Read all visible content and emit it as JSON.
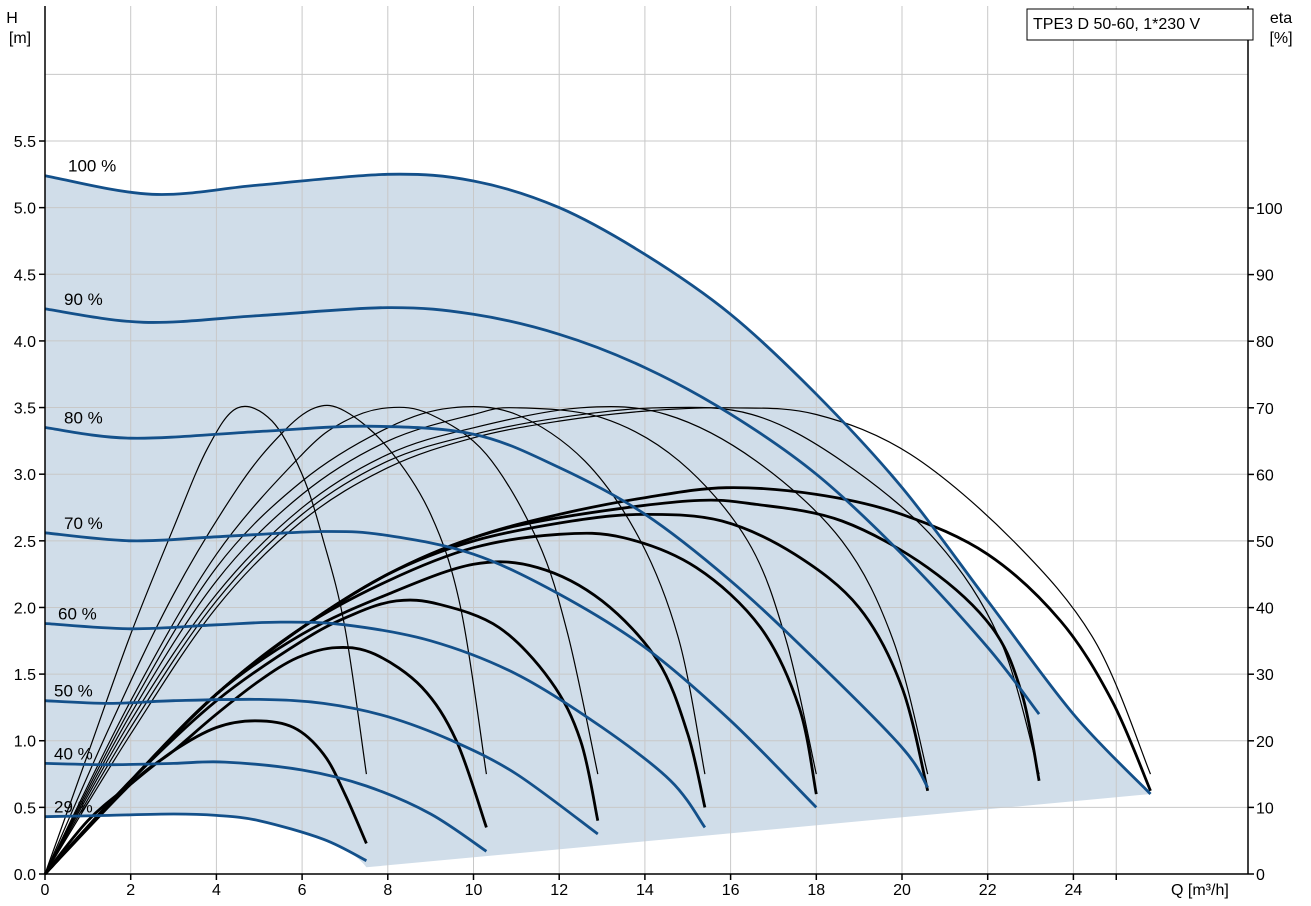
{
  "chart_data": {
    "type": "line",
    "legend": "TPE3 D 50-60, 1*230 V",
    "y_left": {
      "label_line1": "H",
      "label_line2": "[m]",
      "ylim": [
        0,
        5.5
      ],
      "ticks": [
        0.0,
        0.5,
        1.0,
        1.5,
        2.0,
        2.5,
        3.0,
        3.5,
        4.0,
        4.5,
        5.0,
        5.5
      ],
      "tick_labels": [
        "0.0",
        "0.5",
        "1.0",
        "1.5",
        "2.0",
        "2.5",
        "3.0",
        "3.5",
        "4.0",
        "4.5",
        "5.0",
        "5.5"
      ]
    },
    "y_right": {
      "label_line1": "eta",
      "label_line2": "[%]",
      "ylim": [
        0,
        100
      ],
      "ticks": [
        0,
        10,
        20,
        30,
        40,
        50,
        60,
        70,
        80,
        90,
        100
      ],
      "tick_labels": [
        "0",
        "10",
        "20",
        "30",
        "40",
        "50",
        "60",
        "70",
        "80",
        "90",
        "100"
      ]
    },
    "x": {
      "label": "Q [m³/h]",
      "xlim": [
        0,
        26
      ],
      "ticks": [
        0,
        2,
        4,
        6,
        8,
        10,
        12,
        14,
        16,
        18,
        20,
        22,
        24
      ],
      "tick_labels": [
        "0",
        "2",
        "4",
        "6",
        "8",
        "10",
        "12",
        "14",
        "16",
        "18",
        "20",
        "22",
        "24"
      ]
    },
    "grid": true,
    "operating_area_lower_boundary": [
      [
        7.5,
        0.05
      ],
      [
        25.8,
        0.6
      ]
    ],
    "head_curves": [
      {
        "label": "100 %",
        "points": [
          [
            0,
            5.24
          ],
          [
            2.5,
            5.1
          ],
          [
            5,
            5.17
          ],
          [
            8,
            5.25
          ],
          [
            10,
            5.2
          ],
          [
            12,
            5.0
          ],
          [
            14,
            4.65
          ],
          [
            16,
            4.2
          ],
          [
            18,
            3.6
          ],
          [
            20,
            2.9
          ],
          [
            22,
            2.05
          ],
          [
            24,
            1.2
          ],
          [
            25.8,
            0.6
          ]
        ]
      },
      {
        "label": "90 %",
        "points": [
          [
            0,
            4.24
          ],
          [
            2.3,
            4.14
          ],
          [
            5,
            4.19
          ],
          [
            8,
            4.25
          ],
          [
            10,
            4.2
          ],
          [
            12,
            4.05
          ],
          [
            14,
            3.8
          ],
          [
            16,
            3.45
          ],
          [
            18,
            3.0
          ],
          [
            20,
            2.4
          ],
          [
            22,
            1.7
          ],
          [
            23.2,
            1.2
          ]
        ]
      },
      {
        "label": "80 %",
        "points": [
          [
            0,
            3.35
          ],
          [
            2,
            3.27
          ],
          [
            5,
            3.32
          ],
          [
            7.5,
            3.36
          ],
          [
            10,
            3.3
          ],
          [
            12,
            3.05
          ],
          [
            14,
            2.7
          ],
          [
            16,
            2.2
          ],
          [
            18,
            1.6
          ],
          [
            20,
            0.95
          ],
          [
            20.6,
            0.65
          ]
        ]
      },
      {
        "label": "70 %",
        "points": [
          [
            0,
            2.56
          ],
          [
            2,
            2.5
          ],
          [
            4,
            2.53
          ],
          [
            6.5,
            2.57
          ],
          [
            8,
            2.54
          ],
          [
            10,
            2.4
          ],
          [
            12,
            2.1
          ],
          [
            14,
            1.7
          ],
          [
            16,
            1.15
          ],
          [
            18,
            0.5
          ]
        ]
      },
      {
        "label": "60 %",
        "points": [
          [
            0,
            1.88
          ],
          [
            2,
            1.84
          ],
          [
            4,
            1.87
          ],
          [
            5.5,
            1.89
          ],
          [
            7,
            1.87
          ],
          [
            9,
            1.75
          ],
          [
            11,
            1.5
          ],
          [
            13,
            1.1
          ],
          [
            14.6,
            0.7
          ],
          [
            15.4,
            0.35
          ]
        ]
      },
      {
        "label": "50 %",
        "points": [
          [
            0,
            1.3
          ],
          [
            1.5,
            1.28
          ],
          [
            3,
            1.3
          ],
          [
            5,
            1.31
          ],
          [
            6.5,
            1.28
          ],
          [
            8,
            1.18
          ],
          [
            9.5,
            1.0
          ],
          [
            11,
            0.75
          ],
          [
            12.9,
            0.3
          ]
        ]
      },
      {
        "label": "40 %",
        "points": [
          [
            0,
            0.83
          ],
          [
            1.5,
            0.82
          ],
          [
            3,
            0.83
          ],
          [
            4.2,
            0.84
          ],
          [
            6,
            0.78
          ],
          [
            7.5,
            0.66
          ],
          [
            9,
            0.45
          ],
          [
            10.3,
            0.17
          ]
        ]
      },
      {
        "label": "29 %",
        "points": [
          [
            0,
            0.43
          ],
          [
            1.5,
            0.44
          ],
          [
            3,
            0.45
          ],
          [
            4,
            0.44
          ],
          [
            5,
            0.4
          ],
          [
            6.5,
            0.26
          ],
          [
            7.5,
            0.1
          ]
        ]
      }
    ],
    "efficiency_curves_left_axis": [
      {
        "points": [
          [
            0,
            0
          ],
          [
            1,
            18
          ],
          [
            2,
            36
          ],
          [
            3,
            52
          ],
          [
            3.8,
            64
          ],
          [
            4.5,
            70
          ],
          [
            5.3,
            68
          ],
          [
            6,
            60
          ],
          [
            6.5,
            50
          ],
          [
            7,
            37
          ],
          [
            7.5,
            15
          ]
        ]
      },
      {
        "points": [
          [
            0,
            0
          ],
          [
            1.5,
            22
          ],
          [
            3,
            42
          ],
          [
            4.5,
            58
          ],
          [
            5.5,
            66
          ],
          [
            6.3,
            70
          ],
          [
            7,
            69.5
          ],
          [
            8,
            64
          ],
          [
            9,
            54
          ],
          [
            9.7,
            40
          ],
          [
            10.3,
            15
          ]
        ]
      },
      {
        "points": [
          [
            0,
            0
          ],
          [
            2,
            26
          ],
          [
            4,
            48
          ],
          [
            6,
            63
          ],
          [
            7,
            68
          ],
          [
            8,
            70
          ],
          [
            9,
            69
          ],
          [
            10.3,
            63
          ],
          [
            11.5,
            50
          ],
          [
            12.2,
            36
          ],
          [
            12.9,
            15
          ]
        ]
      },
      {
        "points": [
          [
            0,
            0
          ],
          [
            2,
            25
          ],
          [
            4,
            46
          ],
          [
            6,
            59
          ],
          [
            8,
            67
          ],
          [
            9.5,
            70
          ],
          [
            11,
            69
          ],
          [
            12.6,
            62
          ],
          [
            13.9,
            50
          ],
          [
            14.8,
            35
          ],
          [
            15.4,
            15
          ]
        ]
      },
      {
        "points": [
          [
            0,
            0
          ],
          [
            2,
            24
          ],
          [
            4,
            44
          ],
          [
            6,
            57
          ],
          [
            8,
            65
          ],
          [
            10,
            69
          ],
          [
            11,
            70
          ],
          [
            13,
            68.5
          ],
          [
            14.8,
            62
          ],
          [
            16.4,
            50
          ],
          [
            17.3,
            35
          ],
          [
            18,
            15
          ]
        ]
      },
      {
        "points": [
          [
            0,
            0
          ],
          [
            2,
            23
          ],
          [
            4,
            42
          ],
          [
            6,
            55
          ],
          [
            8,
            63
          ],
          [
            10,
            67
          ],
          [
            12.5,
            70
          ],
          [
            14.5,
            69
          ],
          [
            16.6,
            62
          ],
          [
            18.6,
            50
          ],
          [
            19.8,
            35
          ],
          [
            20.6,
            15
          ]
        ]
      },
      {
        "points": [
          [
            0,
            0
          ],
          [
            2,
            22
          ],
          [
            4,
            41
          ],
          [
            6,
            54
          ],
          [
            8,
            62
          ],
          [
            10,
            66
          ],
          [
            12,
            68.5
          ],
          [
            14.3,
            70
          ],
          [
            16.5,
            69
          ],
          [
            18.6,
            62
          ],
          [
            20.8,
            50
          ],
          [
            22.3,
            35
          ],
          [
            23.2,
            15
          ]
        ]
      },
      {
        "points": [
          [
            0,
            0
          ],
          [
            2,
            21
          ],
          [
            4,
            40
          ],
          [
            6,
            53
          ],
          [
            8,
            61
          ],
          [
            10,
            65.5
          ],
          [
            12,
            68
          ],
          [
            14,
            69.5
          ],
          [
            16,
            70
          ],
          [
            18,
            69
          ],
          [
            20.2,
            63
          ],
          [
            22.6,
            50
          ],
          [
            24.5,
            35
          ],
          [
            25.8,
            15
          ]
        ]
      }
    ],
    "efficiency_curves_right_axis": [
      {
        "points": [
          [
            0,
            0
          ],
          [
            1,
            8
          ],
          [
            2,
            13.5
          ],
          [
            3,
            18.5
          ],
          [
            4,
            22
          ],
          [
            4.9,
            23
          ],
          [
            5.8,
            22
          ],
          [
            6.5,
            18
          ],
          [
            7,
            12
          ],
          [
            7.5,
            4.6
          ]
        ]
      },
      {
        "points": [
          [
            0,
            0
          ],
          [
            2,
            13.5
          ],
          [
            3,
            18.5
          ],
          [
            4,
            24
          ],
          [
            5,
            29
          ],
          [
            5.9,
            32.5
          ],
          [
            6.8,
            34
          ],
          [
            7.7,
            33
          ],
          [
            8.8,
            28
          ],
          [
            9.6,
            20
          ],
          [
            10.3,
            7
          ]
        ]
      },
      {
        "points": [
          [
            0,
            0
          ],
          [
            2,
            14
          ],
          [
            4,
            26
          ],
          [
            6,
            35
          ],
          [
            7.2,
            39
          ],
          [
            8.2,
            41
          ],
          [
            9.2,
            40.5
          ],
          [
            10.6,
            37
          ],
          [
            11.8,
            29
          ],
          [
            12.5,
            20
          ],
          [
            12.9,
            8
          ]
        ]
      },
      {
        "points": [
          [
            0,
            0
          ],
          [
            2,
            14
          ],
          [
            4,
            27
          ],
          [
            6,
            36
          ],
          [
            8,
            42
          ],
          [
            10,
            46.5
          ],
          [
            11.5,
            46
          ],
          [
            13,
            41
          ],
          [
            14.3,
            32
          ],
          [
            15,
            21
          ],
          [
            15.4,
            10
          ]
        ]
      },
      {
        "points": [
          [
            0,
            0
          ],
          [
            2,
            14
          ],
          [
            4,
            27
          ],
          [
            6,
            37
          ],
          [
            8,
            44
          ],
          [
            10,
            49
          ],
          [
            12,
            51
          ],
          [
            13.5,
            50.5
          ],
          [
            15.2,
            46
          ],
          [
            16.7,
            37
          ],
          [
            17.6,
            25
          ],
          [
            18,
            12
          ]
        ]
      },
      {
        "points": [
          [
            0,
            0
          ],
          [
            2,
            14
          ],
          [
            4,
            27
          ],
          [
            6,
            37
          ],
          [
            8,
            45
          ],
          [
            10,
            50
          ],
          [
            12.3,
            53
          ],
          [
            14,
            54
          ],
          [
            15.8,
            53
          ],
          [
            17.5,
            48
          ],
          [
            19,
            40
          ],
          [
            20,
            28
          ],
          [
            20.6,
            12.5
          ]
        ]
      },
      {
        "points": [
          [
            0,
            0
          ],
          [
            2,
            14
          ],
          [
            4,
            27
          ],
          [
            6,
            37
          ],
          [
            8,
            45
          ],
          [
            10,
            50.5
          ],
          [
            12,
            53.5
          ],
          [
            15,
            56
          ],
          [
            16.6,
            55.5
          ],
          [
            18.6,
            53
          ],
          [
            20.6,
            46
          ],
          [
            22.1,
            37
          ],
          [
            22.8,
            27
          ],
          [
            23.2,
            14
          ]
        ]
      },
      {
        "points": [
          [
            0,
            0
          ],
          [
            2,
            14
          ],
          [
            4,
            27
          ],
          [
            6,
            37
          ],
          [
            8,
            45
          ],
          [
            10,
            50.5
          ],
          [
            12,
            54
          ],
          [
            14,
            56.5
          ],
          [
            15.9,
            58
          ],
          [
            18,
            57
          ],
          [
            20,
            54
          ],
          [
            22,
            48
          ],
          [
            23.7,
            38
          ],
          [
            24.9,
            26
          ],
          [
            25.8,
            12.5
          ]
        ]
      }
    ],
    "colors": {
      "head_curve": "#13508a",
      "efficiency_curve": "#000000",
      "operating_area_fill": "#d0dde9",
      "grid": "#c8c8c8"
    }
  }
}
